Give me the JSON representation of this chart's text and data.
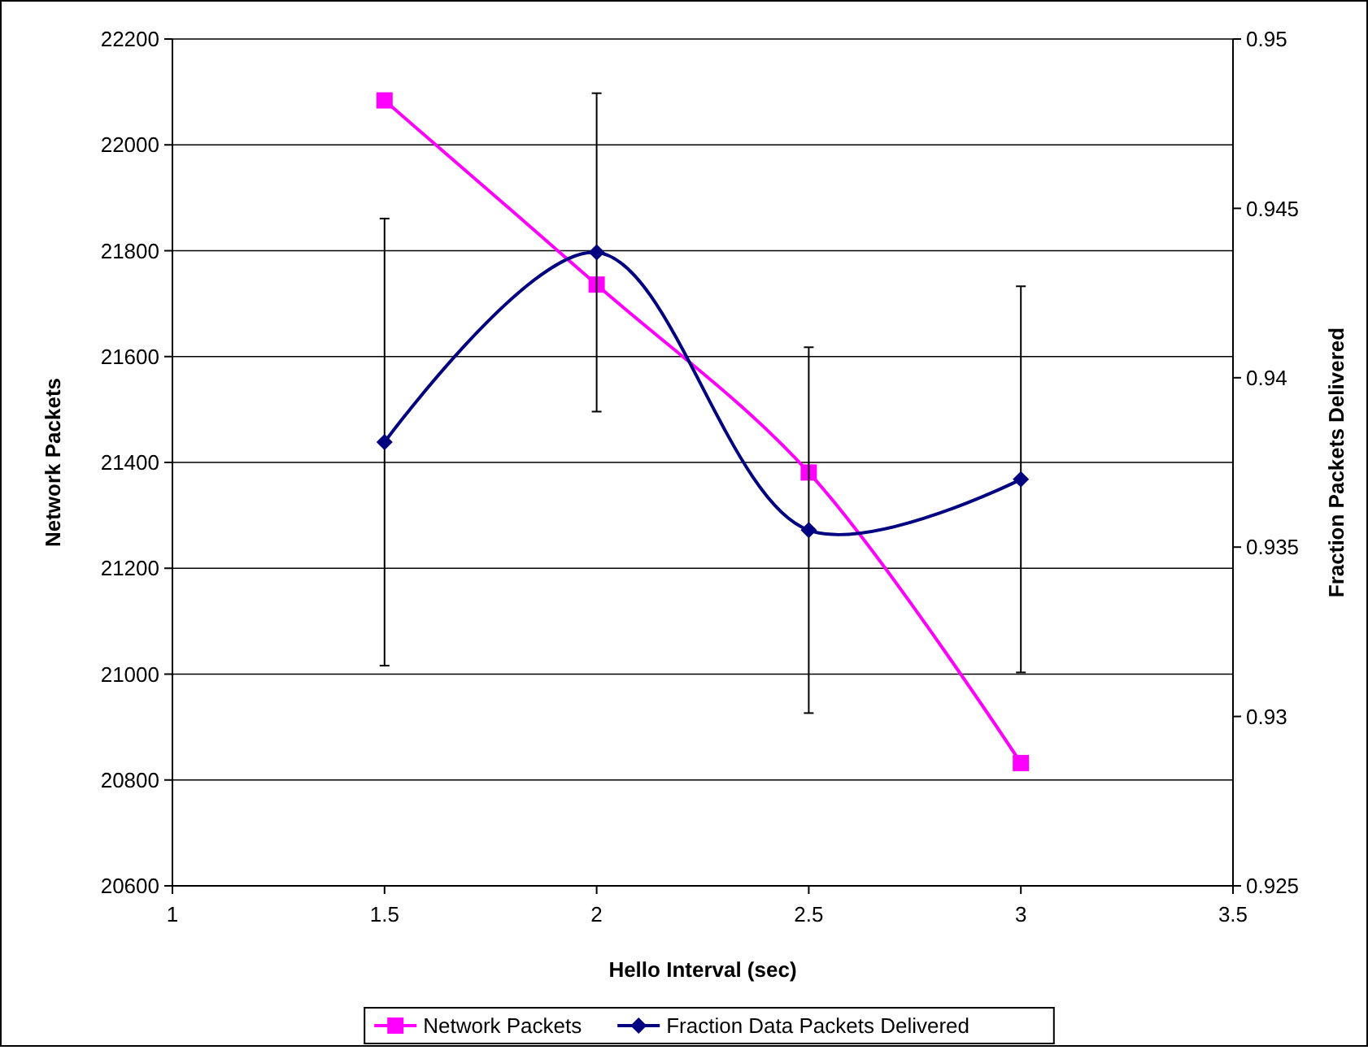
{
  "chart_data": {
    "type": "line",
    "xlabel": "Hello Interval (sec)",
    "ylabel": "Network Packets",
    "y2label": "Fraction Packets Delivered",
    "x": [
      1.5,
      2,
      2.5,
      3
    ],
    "xlim": [
      1,
      3.5
    ],
    "xticks": [
      1,
      1.5,
      2,
      2.5,
      3,
      3.5
    ],
    "ylim": [
      20600,
      22200
    ],
    "yticks": [
      20600,
      20800,
      21000,
      21200,
      21400,
      21600,
      21800,
      22000,
      22200
    ],
    "y2lim": [
      0.925,
      0.95
    ],
    "y2ticks": [
      0.925,
      0.93,
      0.935,
      0.94,
      0.945,
      0.95
    ],
    "grid": "y",
    "legend": "bottom",
    "series": [
      {
        "name": "Network Packets",
        "color": "#ff00ff",
        "marker": "square",
        "values": [
          22084,
          21736,
          21381,
          20832
        ]
      },
      {
        "name": "Fraction Data Packets Delivered",
        "color": "#000080",
        "marker": "diamond",
        "axis": "y2",
        "values": [
          0.9381,
          0.9437,
          0.9355,
          0.937
        ],
        "errors": [
          0.0066,
          0.0047,
          0.0054,
          0.0057
        ]
      }
    ]
  }
}
